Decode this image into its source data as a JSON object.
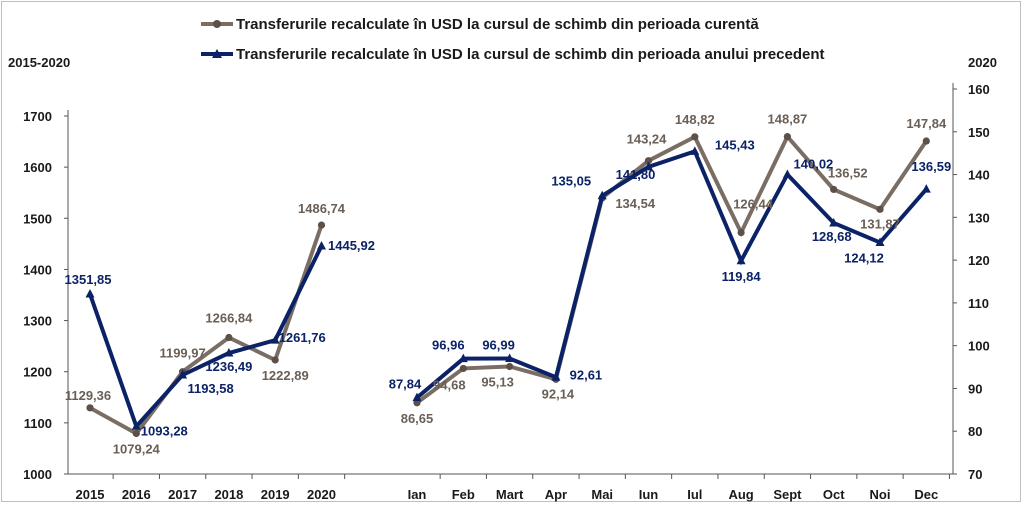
{
  "colors": {
    "current": "#7a6e64",
    "current_marker": "#5c5048",
    "previous": "#0c2266",
    "current_label": "#6b5f55",
    "previous_label": "#0c2266"
  },
  "chart_data": [
    {
      "type": "line",
      "axis_title": "2015-2020",
      "ylim": [
        1000,
        1700
      ],
      "yticks": [
        1000,
        1100,
        1200,
        1300,
        1400,
        1500,
        1600,
        1700
      ],
      "categories": [
        "2015",
        "2016",
        "2017",
        "2018",
        "2019",
        "2020"
      ],
      "series": [
        {
          "name": "Transferurile recalculate în USD la cursul de schimb din perioada curentă",
          "values": [
            1129.36,
            1079.24,
            1199.97,
            1266.84,
            1222.89,
            1486.74
          ],
          "labels": [
            "1129,36",
            "1079,24",
            "1199,97",
            "1266,84",
            "1222,89",
            "1486,74"
          ]
        },
        {
          "name": "Transferurile recalculate în USD la cursul de schimb din perioada anului precedent",
          "values": [
            1351.85,
            1093.28,
            1193.58,
            1236.49,
            1261.76,
            1445.92
          ],
          "labels": [
            "1351,85",
            "1093,28",
            "1193,58",
            "1236,49",
            "1261,76",
            "1445,92"
          ]
        }
      ]
    },
    {
      "type": "line",
      "axis_title": "2020",
      "ylim": [
        70,
        160
      ],
      "yticks": [
        70,
        80,
        90,
        100,
        110,
        120,
        130,
        140,
        150,
        160
      ],
      "categories": [
        "Ian",
        "Feb",
        "Mart",
        "Apr",
        "Mai",
        "Iun",
        "Iul",
        "Aug",
        "Sept",
        "Oct",
        "Noi",
        "Dec"
      ],
      "series": [
        {
          "name": "Transferurile recalculate în USD la cursul de schimb din perioada curentă",
          "values": [
            86.65,
            94.68,
            95.13,
            92.14,
            134.54,
            143.24,
            148.82,
            126.44,
            148.87,
            136.52,
            131.87,
            147.84
          ],
          "labels": [
            "86,65",
            "94,68",
            "95,13",
            "92,14",
            "134,54",
            "143,24",
            "148,82",
            "126,44",
            "148,87",
            "136,52",
            "131,87",
            "147,84"
          ]
        },
        {
          "name": "Transferurile recalculate în USD la cursul de schimb din perioada anului precedent",
          "values": [
            87.84,
            96.96,
            96.99,
            92.61,
            135.05,
            141.8,
            145.43,
            119.84,
            140.02,
            128.68,
            124.12,
            136.59
          ],
          "labels": [
            "87,84",
            "96,96",
            "96,99",
            "92,61",
            "135,05",
            "141,80",
            "145,43",
            "119,84",
            "140,02",
            "128,68",
            "124,12",
            "136,59"
          ]
        }
      ]
    }
  ]
}
